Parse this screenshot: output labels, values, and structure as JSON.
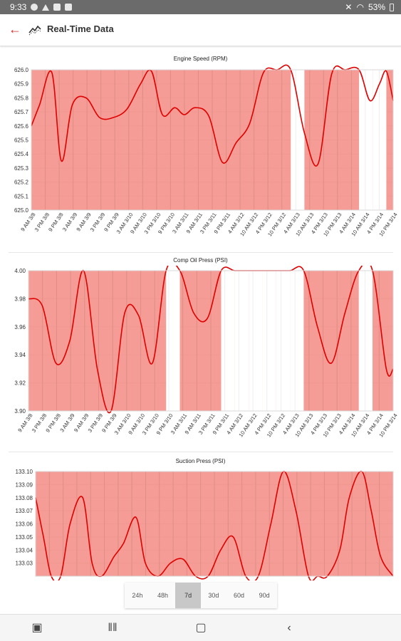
{
  "status": {
    "time": "9:33",
    "battery": "53%"
  },
  "appbar": {
    "title": "Real-Time Data",
    "back_icon": "arrow-left-icon",
    "app_icon": "line-trend-icon",
    "accent": "#d32f2f"
  },
  "colors": {
    "band": "#f28b82",
    "line": "#e00000"
  },
  "range_selector": {
    "options": [
      "24h",
      "48h",
      "7d",
      "30d",
      "60d",
      "90d"
    ],
    "selected": "7d"
  },
  "chart_data": [
    {
      "type": "area",
      "title": "Engine Speed (RPM)",
      "ylim": [
        625.0,
        626.0
      ],
      "yticks": [
        "626.0",
        "625.9",
        "625.8",
        "625.7",
        "625.6",
        "625.5",
        "625.4",
        "625.3",
        "625.2",
        "625.1",
        "625.0"
      ],
      "categories": [
        "9 AM 3/8",
        "3 PM 3/8",
        "9 PM 3/8",
        "3 AM 3/9",
        "9 AM 3/9",
        "3 PM 3/9",
        "9 PM 3/9",
        "3 AM 3/10",
        "9 AM 3/10",
        "3 PM 3/10",
        "9 PM 3/10",
        "3 AM 3/11",
        "9 AM 3/11",
        "3 PM 3/11",
        "9 PM 3/11",
        "4 AM 3/12",
        "10 AM 3/12",
        "4 PM 3/12",
        "10 PM 3/12",
        "4 AM 3/13",
        "10 AM 3/13",
        "4 PM 3/13",
        "10 PM 3/13",
        "4 AM 3/14",
        "10 AM 3/14",
        "4 PM 3/14",
        "10 PM 3/14"
      ],
      "series": [
        {
          "x": [
            0,
            0.6,
            1.5,
            2.2,
            3,
            4,
            5,
            6,
            7,
            8,
            8.8,
            9.6,
            10.5,
            11.2,
            12,
            13,
            14,
            15,
            16,
            17,
            18,
            19,
            20,
            21,
            22,
            23,
            24,
            24.8,
            25.5,
            26,
            26.5
          ],
          "values": [
            625.6,
            625.75,
            625.98,
            625.35,
            625.75,
            625.8,
            625.66,
            625.66,
            625.72,
            625.9,
            625.99,
            625.68,
            625.73,
            625.68,
            625.73,
            625.67,
            625.34,
            625.48,
            625.62,
            625.98,
            626.0,
            626.0,
            625.55,
            625.33,
            625.97,
            626.0,
            626.0,
            625.78,
            625.9,
            625.99,
            625.78
          ]
        },
        {
          "x": [
            0,
            1,
            2,
            3,
            4,
            5,
            6,
            7,
            8,
            8.7,
            9.5,
            10.5,
            11,
            12,
            13,
            14,
            15,
            16,
            17,
            18,
            19,
            20,
            21,
            22,
            23,
            23.5,
            24,
            25,
            26,
            26.5
          ],
          "values": [
            625.1,
            625.9,
            625.0,
            625.0,
            625.0,
            625.0,
            625.0,
            625.0,
            625.0,
            625.5,
            626.0,
            625.0,
            625.0,
            625.0,
            625.0,
            625.0,
            625.0,
            625.0,
            625.0,
            625.8,
            626.0,
            626.0,
            625.3,
            625.0,
            625.0,
            625.3,
            626.0,
            626.0,
            626.0,
            625.2
          ]
        }
      ]
    },
    {
      "type": "area",
      "title": "Comp Oil Press (PSI)",
      "ylim": [
        3.9,
        4.0
      ],
      "yticks": [
        "4.00",
        "3.98",
        "3.96",
        "3.94",
        "3.92",
        "3.90"
      ],
      "categories": [
        "9 AM 3/8",
        "3 PM 3/8",
        "9 PM 3/8",
        "3 AM 3/9",
        "9 AM 3/9",
        "3 PM 3/9",
        "9 PM 3/9",
        "3 AM 3/10",
        "9 AM 3/10",
        "3 PM 3/10",
        "9 PM 3/10",
        "3 AM 3/11",
        "9 AM 3/11",
        "3 PM 3/11",
        "9 PM 3/11",
        "4 AM 3/12",
        "10 AM 3/12",
        "4 PM 3/12",
        "10 PM 3/12",
        "4 AM 3/13",
        "10 AM 3/13",
        "4 PM 3/13",
        "10 PM 3/13",
        "4 AM 3/14",
        "10 AM 3/14",
        "4 PM 3/14",
        "10 PM 3/14"
      ],
      "series": [
        {
          "x": [
            0,
            1,
            2,
            3,
            4,
            5,
            6,
            7,
            8,
            9,
            10,
            11,
            12,
            13,
            14,
            15,
            16,
            17,
            18,
            19,
            20,
            21,
            22,
            23,
            24,
            25,
            26,
            26.5
          ],
          "values": [
            3.98,
            3.975,
            3.934,
            3.95,
            4.0,
            3.93,
            3.9,
            3.97,
            3.968,
            3.934,
            4.0,
            4.0,
            3.97,
            3.966,
            4.0,
            4.0,
            4.0,
            4.0,
            4.0,
            4.0,
            4.0,
            3.96,
            3.934,
            3.97,
            4.0,
            4.0,
            3.93,
            3.93
          ]
        }
      ]
    },
    {
      "type": "area",
      "title": "Suction Press (PSI)",
      "ylim": [
        133.02,
        133.1
      ],
      "yticks": [
        "133.10",
        "133.09",
        "133.08",
        "133.07",
        "133.06",
        "133.05",
        "133.04",
        "133.03"
      ],
      "series": [
        {
          "x": [
            0,
            0.5,
            1,
            1.6,
            2.2,
            3,
            3.6,
            4.2,
            5,
            5.6,
            6.4,
            7,
            7.8,
            8.6,
            9.4,
            10.2,
            11,
            11.8,
            12.6,
            13.4,
            14.2,
            15,
            15.8,
            16.6,
            17.4,
            18,
            18.6,
            19.4,
            20,
            20.8,
            21.4,
            22,
            22.8
          ],
          "values": [
            133.08,
            133.05,
            133.02,
            133.02,
            133.06,
            133.08,
            133.03,
            133.02,
            133.035,
            133.045,
            133.065,
            133.03,
            133.02,
            133.03,
            133.033,
            133.02,
            133.02,
            133.04,
            133.05,
            133.02,
            133.02,
            133.06,
            133.1,
            133.07,
            133.02,
            133.02,
            133.02,
            133.04,
            133.08,
            133.1,
            133.07,
            133.035,
            133.02
          ]
        }
      ]
    }
  ]
}
